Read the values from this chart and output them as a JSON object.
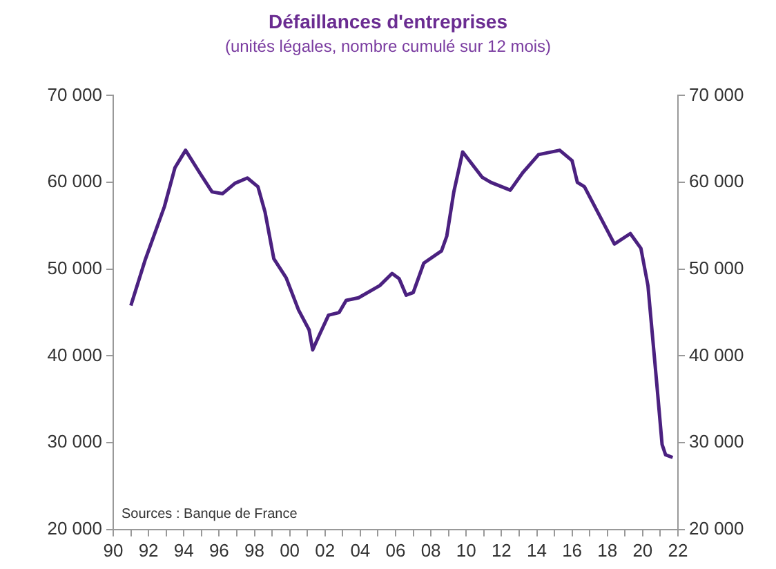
{
  "chart_data": {
    "type": "line",
    "title": "Défaillances d'entreprises",
    "subtitle": "(unités légales, nombre cumulé sur 12 mois)",
    "annotations": [
      "Sources : Banque de France"
    ],
    "series": [
      {
        "color": "#4b2180",
        "x": [
          1991.0,
          1991.8,
          1992.9,
          1993.5,
          1994.1,
          1994.9,
          1995.6,
          1996.2,
          1996.9,
          1997.6,
          1998.2,
          1998.6,
          1999.1,
          1999.8,
          2000.5,
          2001.1,
          2001.3,
          2001.7,
          2002.2,
          2002.8,
          2003.2,
          2003.9,
          2005.1,
          2005.8,
          2006.2,
          2006.6,
          2007.0,
          2007.6,
          2008.6,
          2008.9,
          2009.3,
          2009.8,
          2010.9,
          2011.4,
          2012.5,
          2013.2,
          2014.1,
          2015.3,
          2016.0,
          2016.3,
          2016.7,
          2017.6,
          2018.4,
          2019.3,
          2019.9,
          2020.3,
          2020.8,
          2021.1,
          2021.3,
          2021.7
        ],
        "values": [
          45800,
          51000,
          57200,
          61700,
          63700,
          61100,
          58900,
          58700,
          59900,
          60500,
          59500,
          56600,
          51200,
          49000,
          45300,
          43000,
          40700,
          42500,
          44700,
          45000,
          46400,
          46700,
          48100,
          49500,
          48900,
          47000,
          47300,
          50700,
          52100,
          53800,
          58900,
          63500,
          60600,
          60000,
          59100,
          61100,
          63200,
          63700,
          62500,
          60000,
          59500,
          56000,
          52900,
          54100,
          52400,
          48100,
          36800,
          29800,
          28600,
          28300
        ]
      }
    ],
    "xlim": [
      1990,
      2022
    ],
    "xticks": [
      {
        "value": 1990,
        "label": "90"
      },
      {
        "value": 1991,
        "label": null
      },
      {
        "value": 1992,
        "label": "92"
      },
      {
        "value": 1993,
        "label": null
      },
      {
        "value": 1994,
        "label": "94"
      },
      {
        "value": 1995,
        "label": null
      },
      {
        "value": 1996,
        "label": "96"
      },
      {
        "value": 1997,
        "label": null
      },
      {
        "value": 1998,
        "label": "98"
      },
      {
        "value": 1999,
        "label": null
      },
      {
        "value": 2000,
        "label": "00"
      },
      {
        "value": 2001,
        "label": null
      },
      {
        "value": 2002,
        "label": "02"
      },
      {
        "value": 2003,
        "label": null
      },
      {
        "value": 2004,
        "label": "04"
      },
      {
        "value": 2005,
        "label": null
      },
      {
        "value": 2006,
        "label": "06"
      },
      {
        "value": 2007,
        "label": null
      },
      {
        "value": 2008,
        "label": "08"
      },
      {
        "value": 2009,
        "label": null
      },
      {
        "value": 2010,
        "label": "10"
      },
      {
        "value": 2011,
        "label": null
      },
      {
        "value": 2012,
        "label": "12"
      },
      {
        "value": 2013,
        "label": null
      },
      {
        "value": 2014,
        "label": "14"
      },
      {
        "value": 2015,
        "label": null
      },
      {
        "value": 2016,
        "label": "16"
      },
      {
        "value": 2017,
        "label": null
      },
      {
        "value": 2018,
        "label": "18"
      },
      {
        "value": 2019,
        "label": null
      },
      {
        "value": 2020,
        "label": "20"
      },
      {
        "value": 2021,
        "label": null
      },
      {
        "value": 2022,
        "label": "22"
      }
    ],
    "ylim": [
      20000,
      70000
    ],
    "yticks": [
      {
        "value": 20000,
        "label": "20 000"
      },
      {
        "value": 30000,
        "label": "30 000"
      },
      {
        "value": 40000,
        "label": "40 000"
      },
      {
        "value": 50000,
        "label": "50 000"
      },
      {
        "value": 60000,
        "label": "60 000"
      },
      {
        "value": 70000,
        "label": "70 000"
      }
    ],
    "y2lim": [
      20000,
      70000
    ],
    "y2ticks": [
      {
        "value": 20000,
        "label": "20 000"
      },
      {
        "value": 30000,
        "label": "30 000"
      },
      {
        "value": 40000,
        "label": "40 000"
      },
      {
        "value": 50000,
        "label": "50 000"
      },
      {
        "value": 60000,
        "label": "60 000"
      },
      {
        "value": 70000,
        "label": "70 000"
      }
    ],
    "grid": false,
    "legend": false,
    "marker": "none",
    "line_style": "solid"
  }
}
